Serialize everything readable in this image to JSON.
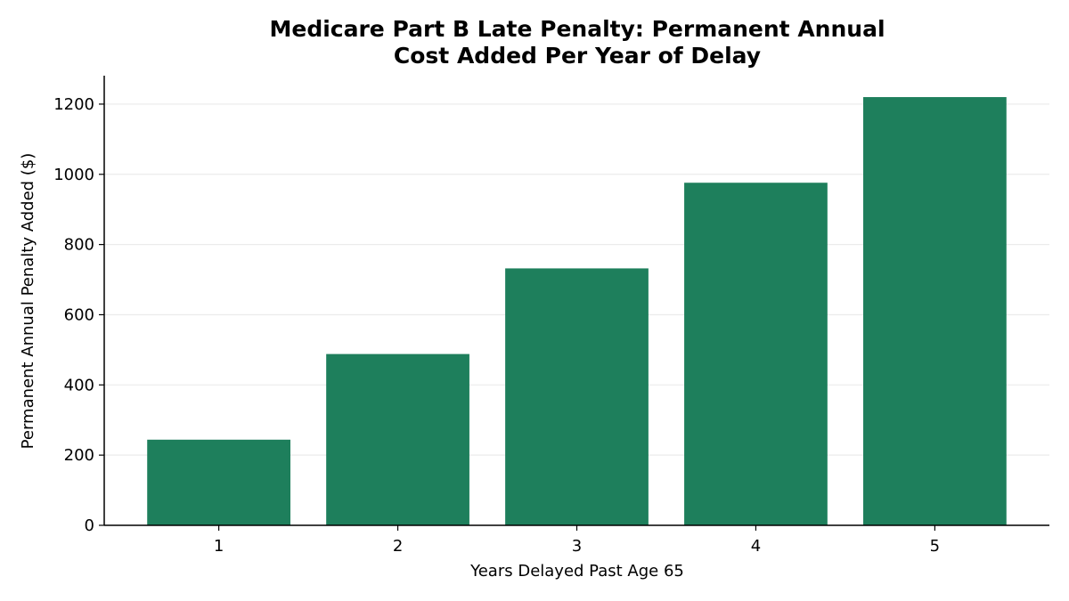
{
  "chart_data": {
    "type": "bar",
    "title": "Medicare Part B Late Penalty: Permanent Annual Cost Added Per Year of Delay",
    "title_lines": [
      "Medicare Part B Late Penalty: Permanent Annual",
      "Cost Added Per Year of Delay"
    ],
    "xlabel": "Years Delayed Past Age 65",
    "ylabel": "Permanent Annual Penalty Added ($)",
    "categories": [
      "1",
      "2",
      "3",
      "4",
      "5"
    ],
    "values": [
      244,
      488,
      732,
      976,
      1220
    ],
    "ylim": [
      0,
      1281
    ],
    "yticks": [
      0,
      200,
      400,
      600,
      800,
      1000,
      1200
    ],
    "grid": "horizontal",
    "bar_color": "#1e7f5c",
    "grid_color": "#ebebeb",
    "axis_color": "#000000"
  }
}
